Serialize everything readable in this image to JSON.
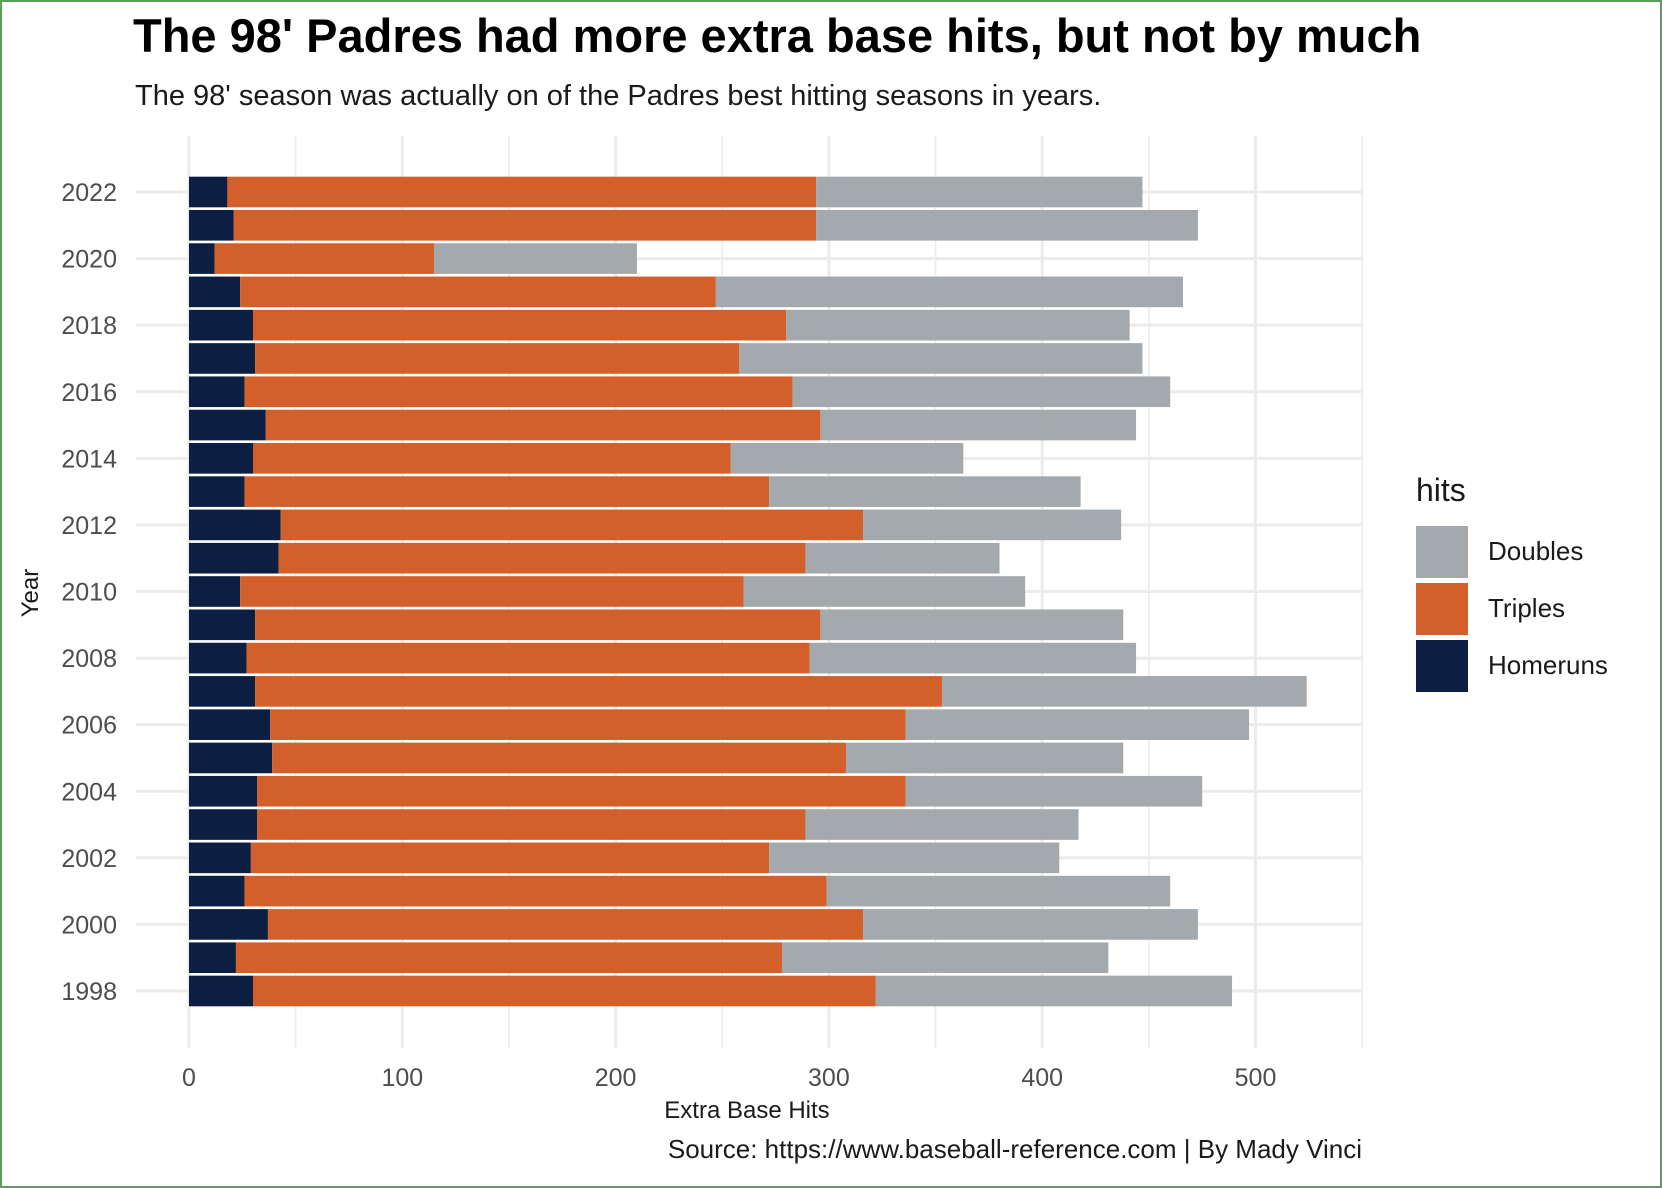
{
  "chart_data": {
    "type": "bar",
    "orientation": "horizontal",
    "stacked": true,
    "title": "The 98' Padres had more extra base hits, but not by much",
    "subtitle": "The 98' season was actually on of the Padres best hitting seasons in years.",
    "caption": "Source: https://www.baseball-reference.com | By Mady Vinci",
    "xlabel": "Extra Base Hits",
    "ylabel": "Year",
    "xlim": [
      0,
      550
    ],
    "x_ticks": [
      "0",
      "100",
      "200",
      "300",
      "400",
      "500"
    ],
    "y_ticks": [
      "2022",
      "2020",
      "2018",
      "2016",
      "2014",
      "2012",
      "2010",
      "2008",
      "2006",
      "2004",
      "2002",
      "2000",
      "1998"
    ],
    "grid": true,
    "legend": {
      "title": "hits",
      "position": "right",
      "entries": [
        "Doubles",
        "Triples",
        "Homeruns"
      ]
    },
    "categories": [
      1998,
      1999,
      2000,
      2001,
      2002,
      2003,
      2004,
      2005,
      2006,
      2007,
      2008,
      2009,
      2010,
      2011,
      2012,
      2013,
      2014,
      2015,
      2016,
      2017,
      2018,
      2019,
      2020,
      2021,
      2022
    ],
    "series": [
      {
        "name": "Homeruns",
        "color": "#0c1f42",
        "values": [
          30,
          22,
          37,
          26,
          29,
          32,
          32,
          39,
          38,
          31,
          27,
          31,
          24,
          42,
          43,
          26,
          30,
          36,
          26,
          31,
          30,
          24,
          12,
          21,
          18
        ]
      },
      {
        "name": "Triples",
        "color": "#d35f2a",
        "values": [
          292,
          256,
          279,
          273,
          243,
          257,
          304,
          269,
          298,
          322,
          264,
          265,
          236,
          247,
          273,
          246,
          224,
          260,
          257,
          227,
          250,
          223,
          103,
          273,
          276
        ]
      },
      {
        "name": "Doubles",
        "color": "#a3a9ac",
        "values": [
          167,
          153,
          157,
          161,
          136,
          128,
          139,
          130,
          161,
          171,
          153,
          142,
          132,
          91,
          121,
          146,
          109,
          148,
          177,
          189,
          161,
          219,
          95,
          179,
          153
        ]
      }
    ]
  }
}
